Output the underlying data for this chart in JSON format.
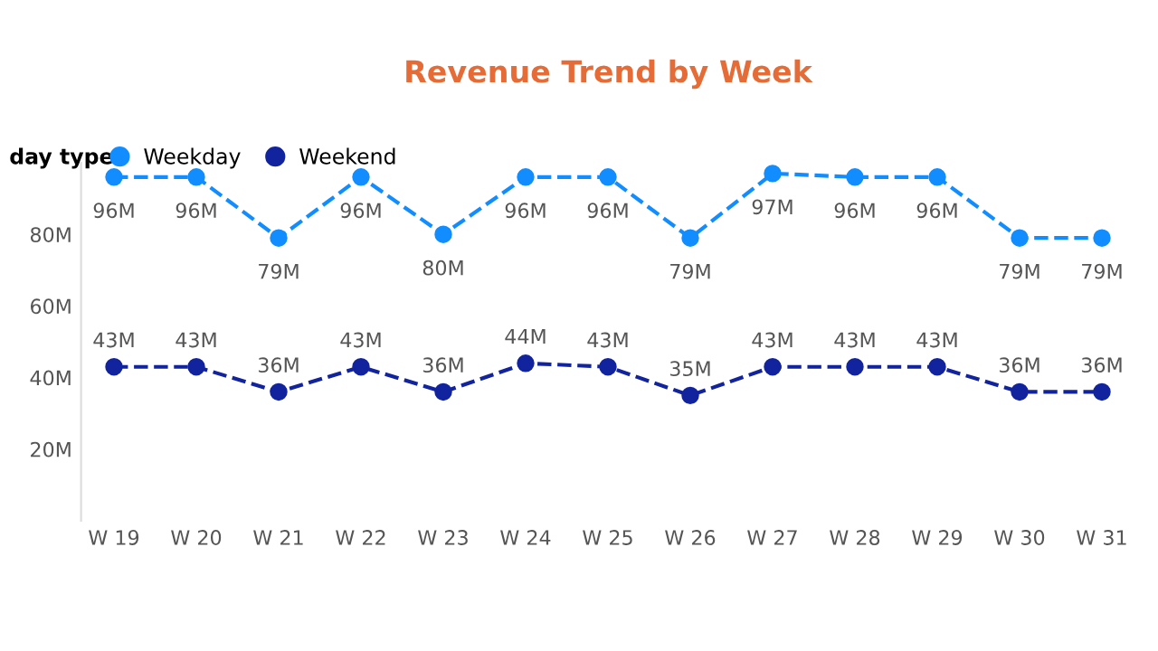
{
  "chart_data": {
    "type": "line",
    "title": "Revenue Trend by Week",
    "legend_title": "day type",
    "categories": [
      "W 19",
      "W 20",
      "W 21",
      "W 22",
      "W 23",
      "W 24",
      "W 25",
      "W 26",
      "W 27",
      "W 28",
      "W 29",
      "W 30",
      "W 31"
    ],
    "series": [
      {
        "name": "Weekday",
        "color": "#118dff",
        "values": [
          96,
          96,
          79,
          96,
          80,
          96,
          96,
          79,
          97,
          96,
          96,
          79,
          79
        ],
        "value_labels": [
          "96M",
          "96M",
          "79M",
          "96M",
          "80M",
          "96M",
          "96M",
          "79M",
          "97M",
          "96M",
          "96M",
          "79M",
          "79M"
        ]
      },
      {
        "name": "Weekend",
        "color": "#12239e",
        "values": [
          43,
          43,
          36,
          43,
          36,
          44,
          43,
          35,
          43,
          43,
          43,
          36,
          36
        ],
        "value_labels": [
          "43M",
          "43M",
          "36M",
          "43M",
          "36M",
          "44M",
          "43M",
          "35M",
          "43M",
          "43M",
          "43M",
          "36M",
          "36M"
        ]
      }
    ],
    "ylim": [
      0,
      100
    ],
    "yticks": [
      {
        "value": 20,
        "label": "20M"
      },
      {
        "value": 40,
        "label": "40M"
      },
      {
        "value": 60,
        "label": "60M"
      },
      {
        "value": 80,
        "label": "80M"
      }
    ],
    "grid": false,
    "legend": "top left",
    "marker": "circle",
    "line_style": "dashed"
  }
}
